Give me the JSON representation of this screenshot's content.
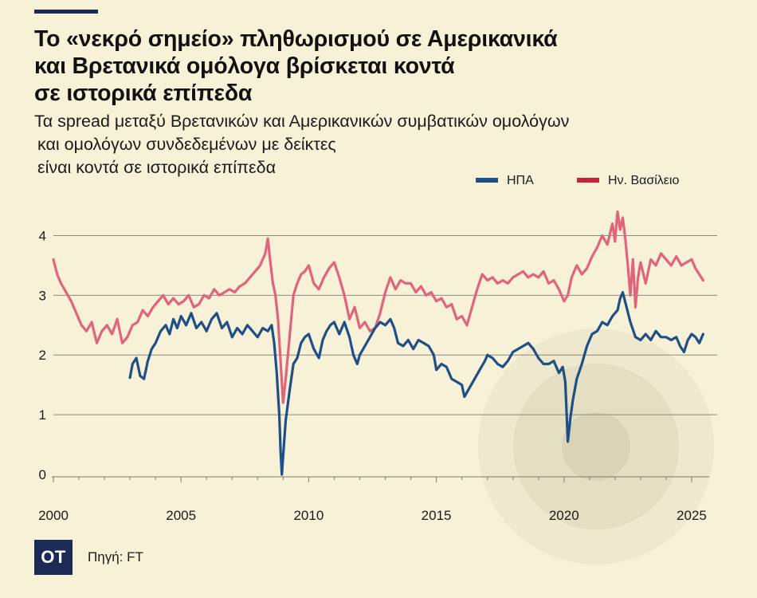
{
  "header": {
    "title_lines": [
      "Το «νεκρό σημείο» πληθωρισμού σε Αμερικανικά",
      "και Βρετανικά ομόλογα βρίσκεται κοντά",
      "σε ιστορικά επίπεδα"
    ],
    "subtitle_lines": [
      "Τα spread μεταξύ Βρετανικών και Αμερικανικών συμβατικών ομολόγων",
      "και ομολόγων συνδεδεμένων με δείκτες",
      "είναι κοντά σε ιστορικά επίπεδα"
    ]
  },
  "footer": {
    "logo_text": "OT",
    "source": "Πηγή: FT"
  },
  "colors": {
    "background": "#f7f2d7",
    "usa": "#1e4f86",
    "uk": "#e0647c",
    "uk_legend": "#c8203f",
    "grid": "#8a8a80",
    "logo": "#1c2b55"
  },
  "chart_data": {
    "type": "line",
    "title": "",
    "xlabel": "",
    "ylabel": "",
    "xlim": [
      2000,
      2026
    ],
    "ylim": [
      0,
      4.5
    ],
    "y_ticks": [
      0,
      1,
      2,
      3,
      4
    ],
    "x_tick_labels": [
      "2000",
      "2005",
      "2010",
      "2015",
      "2020",
      "2025"
    ],
    "x_ticks": [
      2000,
      2005,
      2010,
      2015,
      2020,
      2025
    ],
    "grid": "horizontal",
    "legend_position": "top-right",
    "legend": [
      "ΗΠΑ",
      "Ην. Βασίλειο"
    ],
    "series": [
      {
        "name": "ΗΠΑ",
        "color": "#1e4f86",
        "x": [
          2003.0,
          2003.1,
          2003.25,
          2003.4,
          2003.55,
          2003.7,
          2003.85,
          2004.0,
          2004.2,
          2004.4,
          2004.55,
          2004.7,
          2004.85,
          2005.0,
          2005.2,
          2005.4,
          2005.6,
          2005.8,
          2006.0,
          2006.2,
          2006.4,
          2006.6,
          2006.8,
          2007.0,
          2007.2,
          2007.4,
          2007.6,
          2007.8,
          2008.0,
          2008.2,
          2008.4,
          2008.55,
          2008.65,
          2008.75,
          2008.85,
          2008.9,
          2008.95,
          2009.0,
          2009.1,
          2009.25,
          2009.4,
          2009.55,
          2009.7,
          2009.85,
          2010.0,
          2010.2,
          2010.4,
          2010.55,
          2010.7,
          2010.85,
          2011.0,
          2011.2,
          2011.4,
          2011.6,
          2011.75,
          2011.9,
          2012.0,
          2012.2,
          2012.4,
          2012.6,
          2012.8,
          2013.0,
          2013.2,
          2013.35,
          2013.5,
          2013.7,
          2013.9,
          2014.1,
          2014.3,
          2014.5,
          2014.7,
          2014.9,
          2015.0,
          2015.2,
          2015.4,
          2015.6,
          2015.8,
          2016.0,
          2016.1,
          2016.3,
          2016.5,
          2016.7,
          2016.9,
          2017.0,
          2017.2,
          2017.4,
          2017.6,
          2017.8,
          2018.0,
          2018.2,
          2018.4,
          2018.6,
          2018.8,
          2019.0,
          2019.2,
          2019.4,
          2019.6,
          2019.8,
          2019.95,
          2020.05,
          2020.15,
          2020.25,
          2020.35,
          2020.5,
          2020.7,
          2020.9,
          2021.1,
          2021.3,
          2021.5,
          2021.7,
          2021.9,
          2022.1,
          2022.2,
          2022.3,
          2022.45,
          2022.6,
          2022.8,
          2023.0,
          2023.2,
          2023.4,
          2023.6,
          2023.8,
          2024.0,
          2024.2,
          2024.4,
          2024.55,
          2024.7,
          2024.85,
          2025.0,
          2025.15,
          2025.3,
          2025.45
        ],
        "values": [
          1.62,
          1.85,
          1.95,
          1.65,
          1.6,
          1.9,
          2.1,
          2.2,
          2.4,
          2.5,
          2.35,
          2.6,
          2.45,
          2.65,
          2.5,
          2.7,
          2.45,
          2.55,
          2.4,
          2.6,
          2.7,
          2.45,
          2.55,
          2.3,
          2.45,
          2.35,
          2.5,
          2.4,
          2.3,
          2.45,
          2.4,
          2.5,
          2.2,
          1.7,
          1.0,
          0.4,
          0.0,
          0.3,
          0.9,
          1.4,
          1.85,
          1.95,
          2.2,
          2.3,
          2.35,
          2.1,
          1.95,
          2.25,
          2.4,
          2.5,
          2.55,
          2.35,
          2.55,
          2.3,
          2.0,
          1.85,
          2.0,
          2.15,
          2.3,
          2.45,
          2.55,
          2.5,
          2.6,
          2.45,
          2.2,
          2.15,
          2.25,
          2.1,
          2.25,
          2.2,
          2.15,
          2.0,
          1.75,
          1.85,
          1.8,
          1.6,
          1.55,
          1.5,
          1.3,
          1.45,
          1.6,
          1.75,
          1.9,
          2.0,
          1.95,
          1.85,
          1.8,
          1.9,
          2.05,
          2.1,
          2.15,
          2.2,
          2.1,
          1.95,
          1.85,
          1.85,
          1.9,
          1.7,
          1.8,
          1.55,
          0.55,
          0.95,
          1.25,
          1.6,
          1.85,
          2.15,
          2.35,
          2.4,
          2.55,
          2.5,
          2.65,
          2.75,
          2.95,
          3.05,
          2.8,
          2.55,
          2.3,
          2.25,
          2.35,
          2.25,
          2.4,
          2.3,
          2.3,
          2.25,
          2.3,
          2.15,
          2.05,
          2.25,
          2.35,
          2.3,
          2.2,
          2.35
        ]
      },
      {
        "name": "Ην. Βασίλειο",
        "color": "#e0647c",
        "x": [
          2000.0,
          2000.15,
          2000.3,
          2000.5,
          2000.7,
          2000.9,
          2001.1,
          2001.3,
          2001.5,
          2001.7,
          2001.9,
          2002.1,
          2002.3,
          2002.5,
          2002.7,
          2002.9,
          2003.1,
          2003.3,
          2003.5,
          2003.7,
          2003.9,
          2004.1,
          2004.3,
          2004.5,
          2004.7,
          2004.9,
          2005.1,
          2005.3,
          2005.5,
          2005.7,
          2005.9,
          2006.1,
          2006.3,
          2006.5,
          2006.7,
          2006.9,
          2007.1,
          2007.3,
          2007.5,
          2007.7,
          2007.9,
          2008.1,
          2008.3,
          2008.4,
          2008.5,
          2008.6,
          2008.7,
          2008.8,
          2008.9,
          2009.0,
          2009.1,
          2009.25,
          2009.4,
          2009.55,
          2009.7,
          2009.85,
          2010.0,
          2010.2,
          2010.4,
          2010.6,
          2010.8,
          2011.0,
          2011.2,
          2011.4,
          2011.6,
          2011.8,
          2012.0,
          2012.2,
          2012.4,
          2012.6,
          2012.8,
          2013.0,
          2013.2,
          2013.4,
          2013.6,
          2013.8,
          2014.0,
          2014.2,
          2014.4,
          2014.6,
          2014.8,
          2015.0,
          2015.2,
          2015.4,
          2015.6,
          2015.8,
          2016.0,
          2016.2,
          2016.4,
          2016.6,
          2016.8,
          2017.0,
          2017.2,
          2017.4,
          2017.6,
          2017.8,
          2018.0,
          2018.2,
          2018.4,
          2018.6,
          2018.8,
          2019.0,
          2019.2,
          2019.4,
          2019.6,
          2019.8,
          2020.0,
          2020.15,
          2020.3,
          2020.5,
          2020.7,
          2020.9,
          2021.1,
          2021.3,
          2021.5,
          2021.7,
          2021.9,
          2022.0,
          2022.1,
          2022.2,
          2022.3,
          2022.4,
          2022.5,
          2022.6,
          2022.7,
          2022.8,
          2022.9,
          2023.0,
          2023.2,
          2023.4,
          2023.6,
          2023.8,
          2024.0,
          2024.2,
          2024.4,
          2024.6,
          2024.8,
          2025.0,
          2025.15,
          2025.3,
          2025.45
        ],
        "values": [
          3.6,
          3.35,
          3.2,
          3.05,
          2.9,
          2.7,
          2.5,
          2.4,
          2.55,
          2.2,
          2.4,
          2.5,
          2.35,
          2.6,
          2.2,
          2.3,
          2.5,
          2.55,
          2.75,
          2.65,
          2.8,
          2.9,
          3.0,
          2.85,
          2.95,
          2.85,
          2.9,
          3.0,
          2.8,
          2.85,
          3.0,
          2.95,
          3.1,
          3.0,
          3.05,
          3.1,
          3.05,
          3.15,
          3.2,
          3.3,
          3.4,
          3.5,
          3.7,
          3.95,
          3.55,
          3.2,
          3.0,
          2.6,
          1.9,
          1.2,
          1.6,
          2.3,
          3.0,
          3.2,
          3.35,
          3.4,
          3.5,
          3.2,
          3.1,
          3.3,
          3.45,
          3.55,
          3.3,
          3.0,
          2.6,
          2.8,
          2.45,
          2.55,
          2.4,
          2.45,
          2.7,
          3.05,
          3.3,
          3.1,
          3.25,
          3.2,
          3.2,
          3.05,
          3.15,
          3.0,
          3.05,
          2.9,
          2.95,
          2.8,
          2.85,
          2.6,
          2.65,
          2.5,
          2.8,
          3.1,
          3.35,
          3.25,
          3.3,
          3.2,
          3.25,
          3.2,
          3.3,
          3.35,
          3.4,
          3.3,
          3.35,
          3.3,
          3.4,
          3.2,
          3.25,
          3.1,
          2.9,
          3.0,
          3.3,
          3.5,
          3.35,
          3.45,
          3.65,
          3.8,
          4.0,
          3.85,
          4.2,
          3.9,
          4.4,
          4.1,
          4.3,
          3.95,
          3.5,
          3.0,
          3.6,
          2.8,
          3.3,
          3.55,
          3.2,
          3.6,
          3.5,
          3.7,
          3.6,
          3.5,
          3.65,
          3.5,
          3.55,
          3.6,
          3.45,
          3.35,
          3.25
        ]
      }
    ]
  }
}
